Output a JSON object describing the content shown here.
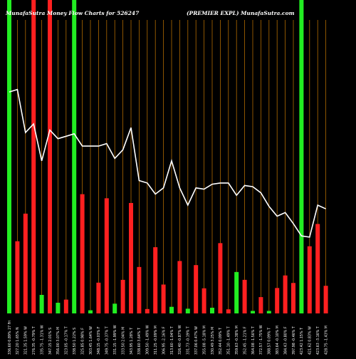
{
  "chart_data": {
    "type": "bar",
    "title_left": "MunafaSutra Money Flow Charts for 526247",
    "title_right": "(PREMIER EXPL) MunafaSutra.com",
    "vertical_lines": "orange",
    "colors": {
      "up": "#22ee22",
      "down": "#ff2020",
      "grid": "#b06a00",
      "line": "#ffffff",
      "background": "#000000"
    },
    "categories": [
      "336.60 0.89% 27 Fri",
      "327.20 1.65% N",
      "321.35 1.59% W",
      "276.35 -0.79% T",
      "335.75 -1.31% W",
      "347.15 2.01% S",
      "356.00 3.07% M",
      "323.05 -0.17% T",
      "338.50 1.22% S",
      "325.85 0.98% F",
      "303.45 1.64% W",
      "348.15 -0.03% F",
      "349.75 -0.37% T",
      "331.15 -1.99% W",
      "333.50 2.04% M",
      "343.95 1.28% T",
      "338.60 3.64% T",
      "309.50 -1.49% W",
      "311.25 -0.09% M",
      "306.95 -2.16% F",
      "313.60 -1.04% T",
      "326.40 -0.87% W",
      "331.73 -0.19% T",
      "337.06 0.47% W",
      "355.08 -5.18% M",
      "330.49 3.25% M",
      "352.44 0.09% T",
      "351.10 -1.49% T",
      "359.63 -0.38% M",
      "352.45 -1.21% F",
      "364.08 -1.56% T",
      "372.57 -1.75% W",
      "388.57 0.09% T",
      "383.64 -0.10% M",
      "384.43 -0.80% F",
      "397.98 -0.46% T",
      "423.42 1.15% T",
      "421.62 0.83% W",
      "423.63 -3.16% T",
      "428.75 -1.43% M"
    ],
    "volume": [
      999,
      230,
      318,
      999,
      59,
      999,
      34,
      44,
      999,
      380,
      10,
      98,
      367,
      31,
      107,
      352,
      148,
      14,
      211,
      92,
      21,
      167,
      15,
      154,
      80,
      18,
      224,
      13,
      132,
      107,
      8,
      52,
      8,
      81,
      121,
      97,
      999,
      214,
      285,
      88
    ],
    "direction": [
      "up",
      "down",
      "down",
      "down",
      "up",
      "down",
      "up",
      "down",
      "up",
      "down",
      "up",
      "down",
      "down",
      "up",
      "down",
      "down",
      "down",
      "down",
      "down",
      "down",
      "up",
      "down",
      "up",
      "down",
      "down",
      "up",
      "down",
      "down",
      "up",
      "down",
      "up",
      "down",
      "up",
      "down",
      "down",
      "down",
      "up",
      "down",
      "down",
      "down"
    ],
    "line": [
      380,
      382,
      347,
      354,
      324,
      349,
      342,
      344,
      346,
      336,
      336,
      336,
      338,
      326,
      333,
      351,
      308,
      306,
      297,
      302,
      324,
      302,
      288,
      302,
      301,
      305,
      306,
      306,
      296,
      304,
      303,
      298,
      287,
      279,
      282,
      273,
      263,
      262,
      288,
      285
    ]
  }
}
